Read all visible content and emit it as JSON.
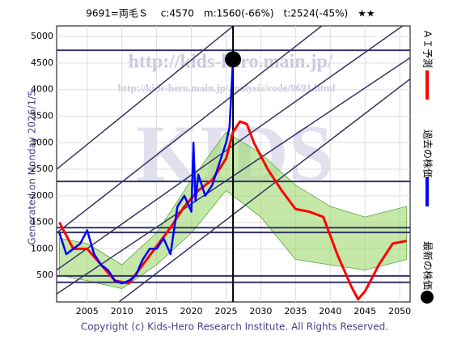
{
  "chart_data": {
    "type": "line",
    "title": "9691=両毛Ｓ　 c:4570　m:1560(-66%)　t:2524(-45%)　★★",
    "side_note": "Generated on Monday 2026/1/5.",
    "footer": "Copyright (c) Kids-Hero Research Institute. All Rights Reserved.",
    "watermarks": [
      "http://kids-hero.main.jp/",
      "http://kids-hero.main.jp/analysis/code/9691.html",
      "KIDS"
    ],
    "xlim": [
      2000.6,
      2051.5
    ],
    "ylim": [
      0,
      5200
    ],
    "xticks": [
      2005,
      2010,
      2015,
      2020,
      2025,
      2030,
      2035,
      2040,
      2045,
      2050
    ],
    "yticks": [
      500,
      1000,
      1500,
      2000,
      2500,
      3000,
      3500,
      4000,
      4500,
      5000
    ],
    "grid": true,
    "hlines": [
      4740,
      2270,
      1400,
      1310,
      490,
      370
    ],
    "vline": 2026,
    "trend_lines": [
      [
        2000.6,
        2500,
        2051.5,
        7900
      ],
      [
        2000.6,
        1300,
        2051.5,
        6500
      ],
      [
        2000.6,
        600,
        2051.5,
        5300
      ],
      [
        2000.6,
        150,
        2051.5,
        4600
      ],
      [
        2000.6,
        -900,
        2051.5,
        4200
      ]
    ],
    "band": {
      "color": "#9ed86f",
      "x": [
        2001,
        2005,
        2010,
        2015,
        2020,
        2025,
        2030,
        2035,
        2040,
        2045,
        2051
      ],
      "low": [
        500,
        400,
        250,
        700,
        1300,
        2100,
        1600,
        800,
        700,
        600,
        800
      ],
      "high": [
        1200,
        1100,
        700,
        1300,
        2300,
        3200,
        2800,
        2200,
        1800,
        1600,
        1800
      ]
    },
    "series": [
      {
        "name": "ＡＩ予測",
        "color": "#ff0000",
        "width": 3,
        "x": [
          2001,
          2003,
          2005,
          2007,
          2009,
          2011,
          2013,
          2015,
          2017,
          2019,
          2021,
          2023,
          2025,
          2026,
          2027,
          2028,
          2029,
          2031,
          2033,
          2035,
          2037,
          2039,
          2041,
          2043,
          2044,
          2045,
          2047,
          2049,
          2051
        ],
        "values": [
          1500,
          1000,
          1000,
          700,
          400,
          350,
          700,
          1050,
          1400,
          1800,
          2100,
          2300,
          2700,
          3200,
          3400,
          3350,
          3000,
          2500,
          2100,
          1750,
          1700,
          1600,
          900,
          300,
          50,
          200,
          700,
          1100,
          1150
        ]
      },
      {
        "name": "過去の株価",
        "color": "#0000ff",
        "width": 2.5,
        "x": [
          2001,
          2002,
          2003,
          2004,
          2005,
          2006,
          2007,
          2008,
          2009,
          2010,
          2011,
          2012,
          2013,
          2014,
          2015,
          2016,
          2017,
          2018,
          2019,
          2020,
          2020.3,
          2020.6,
          2021,
          2022,
          2023,
          2024,
          2025,
          2025.5,
          2026
        ],
        "values": [
          1300,
          900,
          1000,
          1100,
          1350,
          900,
          700,
          600,
          400,
          350,
          400,
          500,
          800,
          1000,
          1000,
          1200,
          900,
          1800,
          2000,
          1700,
          3000,
          1900,
          2400,
          2000,
          2200,
          2600,
          3000,
          3300,
          4570
        ]
      },
      {
        "name": "最新の株価",
        "color": "#000000",
        "marker": true,
        "x": [
          2026
        ],
        "values": [
          4570
        ]
      }
    ]
  }
}
